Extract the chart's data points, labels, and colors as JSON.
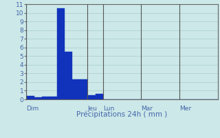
{
  "xlabel": "Précipitations 24h ( mm )",
  "ylabel": "",
  "bar_color": "#1133bb",
  "background_color": "#cce8e8",
  "grid_color": "#aacccc",
  "text_color": "#4466aa",
  "ylim": [
    0,
    11
  ],
  "yticks": [
    0,
    1,
    2,
    3,
    4,
    5,
    6,
    7,
    8,
    9,
    10,
    11
  ],
  "day_labels": [
    "Dim",
    "Jeu",
    "Lun",
    "Mar",
    "Mer"
  ],
  "day_positions": [
    0,
    8,
    10,
    15,
    20
  ],
  "xlim": [
    0,
    25
  ],
  "num_bars": 25,
  "bar_values": [
    0.4,
    0.2,
    0.3,
    0.3,
    10.5,
    5.5,
    2.3,
    2.3,
    0.5,
    0.6,
    0.0,
    0.0,
    0.0,
    0.0,
    0.0,
    0.0,
    0.0,
    0.0,
    0.0,
    0.0,
    0.0,
    0.0,
    0.0,
    0.0,
    0.0
  ]
}
